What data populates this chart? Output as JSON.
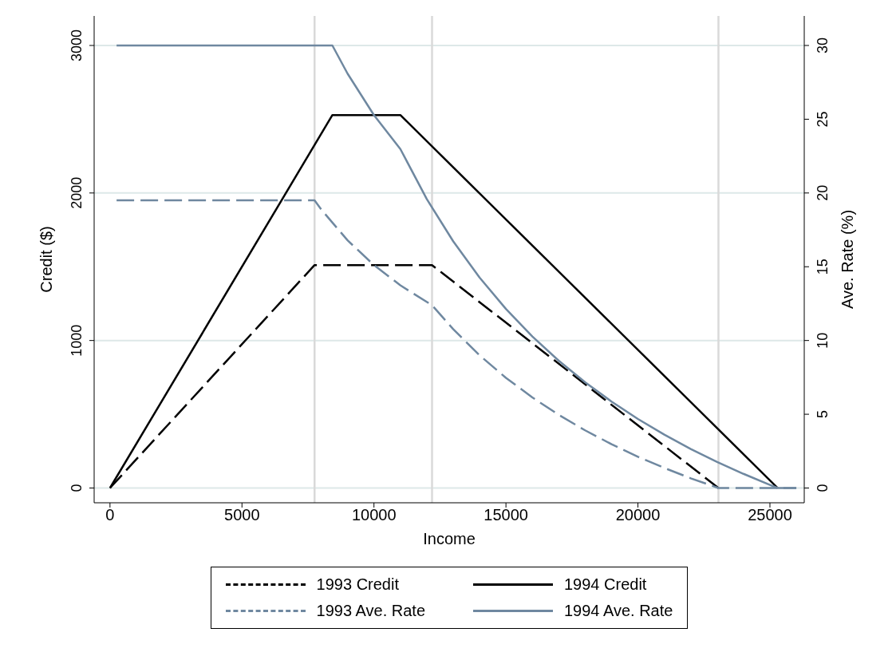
{
  "chart_data": {
    "type": "line",
    "xlabel": "Income",
    "ylabel": "Credit ($)",
    "y2label": "Ave. Rate (%)",
    "xlim": [
      -600,
      26300
    ],
    "xticks": [
      0,
      5000,
      10000,
      15000,
      20000,
      25000
    ],
    "ylim": [
      -100,
      3200
    ],
    "yticks": [
      0,
      1000,
      2000,
      3000
    ],
    "y2lim": [
      -1,
      32
    ],
    "y2ticks": [
      0,
      5,
      10,
      15,
      20,
      25,
      30
    ],
    "grid": "y",
    "legend": "bottom",
    "marker": "none",
    "ref_lines": [
      {
        "axis": "x",
        "value": 7750,
        "color": "#d9d9d9"
      },
      {
        "axis": "x",
        "value": 12200,
        "color": "#d9d9d9"
      },
      {
        "axis": "x",
        "value": 23050,
        "color": "#d9d9d9"
      }
    ],
    "series": [
      {
        "name": "1993 Credit",
        "color": "#000000",
        "line_style": "dashed",
        "x": [
          0,
          7750,
          12200,
          23050
        ],
        "values": [
          0,
          1511,
          1511,
          0
        ]
      },
      {
        "name": "1994 Credit",
        "color": "#000000",
        "line_style": "solid",
        "x": [
          0,
          8425,
          11000,
          25296
        ],
        "values": [
          0,
          2528,
          2528,
          0
        ]
      },
      {
        "name": "1993 Ave. Rate",
        "color": "#6f88a0",
        "line_style": "dashed",
        "axis": "y2",
        "x": [
          250,
          7750,
          8000,
          9000,
          10000,
          11000,
          12200,
          13000,
          14000,
          15000,
          16000,
          17000,
          18000,
          19000,
          20000,
          21000,
          22000,
          23050,
          26000
        ],
        "values": [
          19.5,
          19.5,
          18.89,
          16.79,
          15.11,
          13.74,
          12.39,
          10.77,
          9.0,
          7.47,
          6.14,
          4.96,
          3.91,
          2.97,
          2.12,
          1.36,
          0.66,
          0,
          0
        ]
      },
      {
        "name": "1994 Ave. Rate",
        "color": "#6f88a0",
        "line_style": "solid",
        "axis": "y2",
        "x": [
          250,
          8425,
          9000,
          10000,
          11000,
          12000,
          13000,
          14000,
          15000,
          16000,
          17000,
          18000,
          19000,
          20000,
          21000,
          22000,
          23000,
          24000,
          25000,
          25296,
          26000
        ],
        "values": [
          30,
          30,
          28.09,
          25.28,
          22.98,
          19.59,
          16.73,
          14.27,
          12.14,
          10.27,
          8.63,
          7.17,
          5.86,
          4.68,
          3.62,
          2.65,
          1.77,
          0.96,
          0.21,
          0,
          0
        ]
      }
    ]
  }
}
